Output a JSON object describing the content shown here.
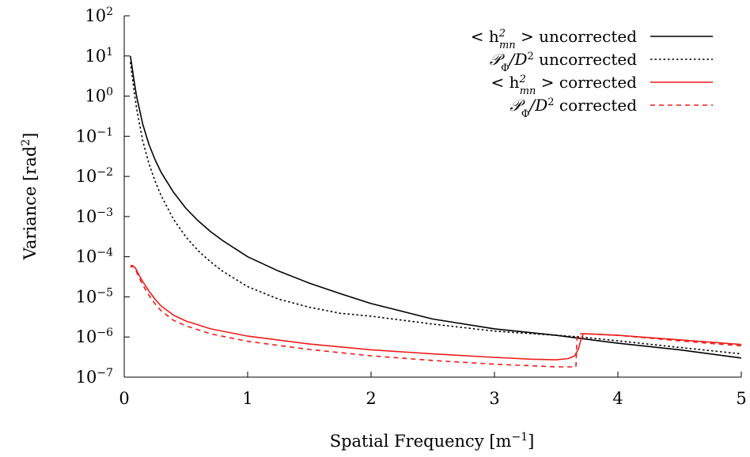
{
  "chart_data": {
    "type": "line",
    "xlabel": "Spatial Frequency [m",
    "xlabel_sup": "−1",
    "xlabel_end": "]",
    "ylabel": "Variance [rad",
    "ylabel_sup": "2",
    "ylabel_end": "]",
    "xlim": [
      0,
      5
    ],
    "ylim": [
      1e-07,
      100
    ],
    "yscale": "log",
    "grid": false,
    "legend_position": "top-right",
    "x_ticks": [
      {
        "value": 0,
        "label": "0"
      },
      {
        "value": 1,
        "label": "1"
      },
      {
        "value": 2,
        "label": "2"
      },
      {
        "value": 3,
        "label": "3"
      },
      {
        "value": 4,
        "label": "4"
      },
      {
        "value": 5,
        "label": "5"
      }
    ],
    "y_ticks": [
      {
        "value": 100,
        "base": "10",
        "exp": "2"
      },
      {
        "value": 10,
        "base": "10",
        "exp": "1"
      },
      {
        "value": 1,
        "base": "10",
        "exp": "0"
      },
      {
        "value": 0.1,
        "base": "10",
        "exp": "−1"
      },
      {
        "value": 0.01,
        "base": "10",
        "exp": "−2"
      },
      {
        "value": 0.001,
        "base": "10",
        "exp": "−3"
      },
      {
        "value": 0.0001,
        "base": "10",
        "exp": "−4"
      },
      {
        "value": 1e-05,
        "base": "10",
        "exp": "−5"
      },
      {
        "value": 1e-06,
        "base": "10",
        "exp": "−6"
      },
      {
        "value": 1e-07,
        "base": "10",
        "exp": "−7"
      }
    ],
    "series": [
      {
        "name": "< h²mn > uncorrected",
        "legend": {
          "pre": "< h",
          "sup": "2",
          "sub": "mn",
          "post": " > uncorrected"
        },
        "color": "#000000",
        "dash": "",
        "x": [
          0.05,
          0.08,
          0.1,
          0.15,
          0.2,
          0.25,
          0.3,
          0.4,
          0.5,
          0.6,
          0.7,
          0.8,
          1.0,
          1.25,
          1.5,
          1.75,
          2.0,
          2.5,
          3.0,
          3.5,
          4.0,
          4.5,
          5.0
        ],
        "y": [
          10,
          2.4,
          1.0,
          0.2,
          0.063,
          0.026,
          0.0125,
          0.004,
          0.0016,
          0.00078,
          0.00042,
          0.00025,
          0.0001,
          4.4e-05,
          2.2e-05,
          1.2e-05,
          6.8e-06,
          2.8e-06,
          1.6e-06,
          1.1e-06,
          7e-07,
          4.8e-07,
          3e-07
        ]
      },
      {
        "name": "PΦ/D² uncorrected",
        "legend": {
          "pre": "𝒫",
          "sub": "Φ",
          "post": "/D",
          "sup2": "2",
          "post2": " uncorrected"
        },
        "color": "#000000",
        "dash": "2.5,3",
        "x": [
          0.05,
          0.08,
          0.1,
          0.15,
          0.2,
          0.25,
          0.3,
          0.4,
          0.5,
          0.6,
          0.7,
          0.8,
          1.0,
          1.25,
          1.5,
          1.75,
          2.0,
          2.5,
          3.0,
          3.5,
          3.7,
          4.0,
          4.5,
          5.0
        ],
        "y": [
          7,
          1.35,
          0.5,
          0.077,
          0.021,
          0.0076,
          0.0033,
          0.00085,
          0.00031,
          0.00014,
          7.4e-05,
          4.3e-05,
          1.8e-05,
          8.8e-06,
          5.5e-06,
          3.9e-06,
          3.3e-06,
          2.1e-06,
          1.4e-06,
          1.1e-06,
          1e-06,
          8e-07,
          5.5e-07,
          3.8e-07
        ]
      },
      {
        "name": "< h²mn > corrected",
        "legend": {
          "pre": "< h",
          "sup": "2",
          "sub": "mn",
          "post": " > corrected"
        },
        "color": "#ee1c1c",
        "dash": "",
        "x": [
          0.05,
          0.07,
          0.09,
          0.12,
          0.15,
          0.2,
          0.25,
          0.3,
          0.4,
          0.5,
          0.7,
          1.0,
          1.5,
          2.0,
          2.5,
          3.0,
          3.3,
          3.5,
          3.6,
          3.65,
          3.68,
          3.7,
          3.72,
          3.75,
          4.0,
          4.5,
          5.0
        ],
        "y": [
          5.5e-05,
          5.8e-05,
          5.3e-05,
          3.5e-05,
          2.4e-05,
          1.4e-05,
          8.7e-06,
          5.9e-06,
          3.5e-06,
          2.5e-06,
          1.6e-06,
          1.05e-06,
          6.7e-07,
          4.8e-07,
          3.8e-07,
          3.1e-07,
          2.8e-07,
          2.7e-07,
          2.9e-07,
          3.4e-07,
          5e-07,
          8.5e-07,
          1.2e-06,
          1.2e-06,
          1.1e-06,
          8.5e-07,
          6.5e-07
        ]
      },
      {
        "name": "PΦ/D² corrected",
        "legend": {
          "pre": "𝒫",
          "sub": "Φ",
          "post": "/D",
          "sup2": "2",
          "post2": " corrected"
        },
        "color": "#ee1c1c",
        "dash": "6,5",
        "x": [
          0.05,
          0.07,
          0.09,
          0.12,
          0.15,
          0.2,
          0.25,
          0.3,
          0.4,
          0.5,
          0.7,
          1.0,
          1.5,
          2.0,
          2.5,
          3.0,
          3.5,
          3.66,
          3.67,
          3.7,
          3.75,
          4.0,
          4.5,
          5.0
        ],
        "y": [
          6e-05,
          6e-05,
          5e-05,
          3e-05,
          2e-05,
          1.1e-05,
          6.7e-06,
          4.5e-06,
          2.6e-06,
          1.9e-06,
          1.2e-06,
          7.8e-07,
          4.9e-07,
          3.4e-07,
          2.6e-07,
          2.1e-07,
          1.8e-07,
          1.8e-07,
          1.1e-06,
          1.2e-06,
          1.2e-06,
          1.1e-06,
          8e-07,
          6e-07
        ]
      }
    ]
  }
}
